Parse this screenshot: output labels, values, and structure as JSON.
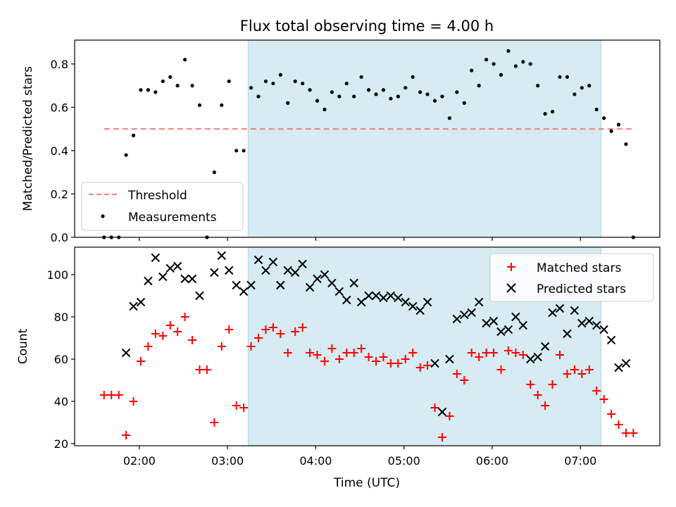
{
  "figure_title": "Flux total observing time = 4.00 h",
  "colors": {
    "shade": "#add8e6",
    "threshold": "#f08080",
    "measurement": "#000000",
    "matched": "#ff0000",
    "predicted": "#000000"
  },
  "chart_data": [
    {
      "type": "scatter",
      "panel": "top",
      "title": "Flux total observing time = 4.00 h",
      "xlabel": "",
      "ylabel": "Matched/Predicted stars",
      "x_axis": "time",
      "xlim": [
        "01:16",
        "07:54"
      ],
      "ylim": [
        0,
        0.91
      ],
      "yticks": [
        0.0,
        0.2,
        0.4,
        0.6,
        0.8
      ],
      "yticklabels": [
        "0.0",
        "0.2",
        "0.4",
        "0.6",
        "0.8"
      ],
      "legend": "lower-left",
      "shaded_interval": [
        "03:14",
        "07:14"
      ],
      "threshold": {
        "name": "Threshold",
        "value": 0.5,
        "x_range": [
          "01:36",
          "07:36"
        ],
        "style": "dashed"
      },
      "series": [
        {
          "name": "Measurements",
          "marker": "dot",
          "x": [
            "01:36",
            "01:41",
            "01:46",
            "01:51",
            "01:56",
            "02:01",
            "02:06",
            "02:11",
            "02:16",
            "02:21",
            "02:26",
            "02:31",
            "02:36",
            "02:41",
            "02:46",
            "02:51",
            "02:56",
            "03:01",
            "03:06",
            "03:11",
            "03:16",
            "03:21",
            "03:26",
            "03:31",
            "03:36",
            "03:41",
            "03:46",
            "03:51",
            "03:56",
            "04:01",
            "04:06",
            "04:11",
            "04:16",
            "04:21",
            "04:26",
            "04:31",
            "04:36",
            "04:41",
            "04:46",
            "04:51",
            "04:56",
            "05:01",
            "05:06",
            "05:11",
            "05:16",
            "05:21",
            "05:26",
            "05:31",
            "05:36",
            "05:41",
            "05:46",
            "05:51",
            "05:56",
            "06:01",
            "06:06",
            "06:11",
            "06:16",
            "06:21",
            "06:26",
            "06:31",
            "06:36",
            "06:41",
            "06:46",
            "06:51",
            "06:56",
            "07:01",
            "07:06",
            "07:11",
            "07:16",
            "07:21",
            "07:26",
            "07:31",
            "07:36"
          ],
          "y": [
            0.0,
            0.0,
            0.0,
            0.38,
            0.47,
            0.68,
            0.68,
            0.67,
            0.72,
            0.74,
            0.7,
            0.82,
            0.7,
            0.61,
            0.0,
            0.3,
            0.61,
            0.72,
            0.4,
            0.4,
            0.69,
            0.65,
            0.72,
            0.71,
            0.75,
            0.62,
            0.72,
            0.71,
            0.68,
            0.63,
            0.59,
            0.67,
            0.65,
            0.71,
            0.65,
            0.74,
            0.68,
            0.66,
            0.68,
            0.64,
            0.65,
            0.69,
            0.74,
            0.67,
            0.66,
            0.63,
            0.65,
            0.55,
            0.67,
            0.62,
            0.77,
            0.7,
            0.82,
            0.8,
            0.75,
            0.86,
            0.79,
            0.81,
            0.8,
            0.7,
            0.57,
            0.58,
            0.74,
            0.74,
            0.66,
            0.69,
            0.7,
            0.59,
            0.55,
            0.49,
            0.52,
            0.43,
            0.0
          ]
        }
      ]
    },
    {
      "type": "scatter",
      "panel": "bottom",
      "title": "",
      "xlabel": "Time (UTC)",
      "ylabel": "Count",
      "x_axis": "time",
      "xlim": [
        "01:16",
        "07:54"
      ],
      "ylim": [
        19,
        113
      ],
      "yticks": [
        20,
        40,
        60,
        80,
        100
      ],
      "xticks": [
        "02:00",
        "03:00",
        "04:00",
        "05:00",
        "06:00",
        "07:00"
      ],
      "legend": "top-right",
      "shaded_interval": [
        "03:14",
        "07:14"
      ],
      "series": [
        {
          "name": "Matched stars",
          "marker": "plus",
          "x": [
            "01:36",
            "01:41",
            "01:46",
            "01:51",
            "01:56",
            "02:01",
            "02:06",
            "02:11",
            "02:16",
            "02:21",
            "02:26",
            "02:31",
            "02:36",
            "02:41",
            "02:46",
            "02:51",
            "02:56",
            "03:01",
            "03:06",
            "03:11",
            "03:16",
            "03:21",
            "03:26",
            "03:31",
            "03:36",
            "03:41",
            "03:46",
            "03:51",
            "03:56",
            "04:01",
            "04:06",
            "04:11",
            "04:16",
            "04:21",
            "04:26",
            "04:31",
            "04:36",
            "04:41",
            "04:46",
            "04:51",
            "04:56",
            "05:01",
            "05:06",
            "05:11",
            "05:16",
            "05:21",
            "05:26",
            "05:31",
            "05:36",
            "05:41",
            "05:46",
            "05:51",
            "05:56",
            "06:01",
            "06:06",
            "06:11",
            "06:16",
            "06:21",
            "06:26",
            "06:31",
            "06:36",
            "06:41",
            "06:46",
            "06:51",
            "06:56",
            "07:01",
            "07:06",
            "07:11",
            "07:16",
            "07:21",
            "07:26",
            "07:31",
            "07:36"
          ],
          "y": [
            43,
            43,
            43,
            24,
            40,
            59,
            66,
            72,
            71,
            76,
            73,
            80,
            69,
            55,
            55,
            30,
            66,
            74,
            38,
            37,
            66,
            70,
            74,
            75,
            72,
            63,
            73,
            75,
            63,
            62,
            59,
            65,
            60,
            63,
            63,
            65,
            61,
            59,
            61,
            58,
            58,
            60,
            63,
            56,
            57,
            37,
            23,
            33,
            53,
            50,
            63,
            61,
            63,
            63,
            55,
            64,
            63,
            62,
            48,
            43,
            38,
            48,
            62,
            53,
            55,
            53,
            55,
            45,
            41,
            34,
            29,
            25,
            25
          ]
        },
        {
          "name": "Predicted stars",
          "marker": "x",
          "x": [
            "01:51",
            "01:56",
            "02:01",
            "02:06",
            "02:11",
            "02:16",
            "02:21",
            "02:26",
            "02:31",
            "02:36",
            "02:41",
            "02:51",
            "02:56",
            "03:01",
            "03:06",
            "03:11",
            "03:16",
            "03:21",
            "03:26",
            "03:31",
            "03:36",
            "03:41",
            "03:46",
            "03:51",
            "03:56",
            "04:01",
            "04:06",
            "04:11",
            "04:16",
            "04:21",
            "04:26",
            "04:31",
            "04:36",
            "04:41",
            "04:46",
            "04:51",
            "04:56",
            "05:01",
            "05:06",
            "05:11",
            "05:16",
            "05:21",
            "05:26",
            "05:31",
            "05:36",
            "05:41",
            "05:46",
            "05:51",
            "05:56",
            "06:01",
            "06:06",
            "06:11",
            "06:16",
            "06:21",
            "06:26",
            "06:31",
            "06:36",
            "06:41",
            "06:46",
            "06:51",
            "06:56",
            "07:01",
            "07:06",
            "07:11",
            "07:16",
            "07:21",
            "07:26",
            "07:31"
          ],
          "y": [
            63,
            85,
            87,
            97,
            108,
            99,
            103,
            104,
            98,
            98,
            90,
            101,
            109,
            102,
            95,
            92,
            95,
            107,
            102,
            106,
            95,
            102,
            101,
            105,
            94,
            98,
            100,
            96,
            92,
            88,
            96,
            87,
            90,
            90,
            89,
            90,
            89,
            87,
            85,
            83,
            87,
            58,
            35,
            60,
            79,
            81,
            82,
            87,
            77,
            78,
            73,
            74,
            80,
            76,
            60,
            61,
            66,
            82,
            84,
            72,
            83,
            77,
            78,
            76,
            74,
            69,
            56,
            58
          ]
        }
      ]
    }
  ]
}
